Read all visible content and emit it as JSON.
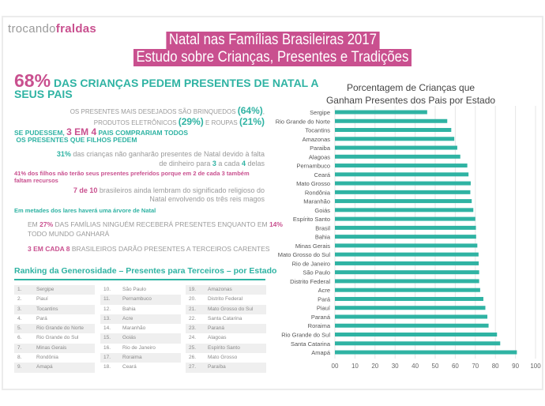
{
  "logo": {
    "part1": "trocando",
    "part2": "fraldas"
  },
  "title": {
    "line1": "Natal nas Famílias Brasileiras 2017",
    "line2": "Estudo sobre Crianças, Presentes e Tradições"
  },
  "facts": {
    "f1": {
      "big": "68%",
      "text": "DAS CRIANÇAS PEDEM PRESENTES DE NATAL A",
      "text2": "SEUS PAIS"
    },
    "f2": {
      "a": "OS PRESENTES MAIS DESEJADOS SÃO BRINQUEDOS ",
      "v1": "(64%)",
      "b": ",",
      "c": "PRODUTOS ELETRÔNICOS ",
      "v2": "(29%)",
      "d": " E ROUPAS ",
      "v3": "(21%)"
    },
    "f3": {
      "a": "SE PUDESSEM, ",
      "big": "3 EM 4",
      "b": " PAIS COMPRARIAM TODOS",
      "c": "OS PRESENTES QUE FILHOS PEDEM"
    },
    "f4": {
      "v": "31%",
      "a": " das crianças não ganharão presentes de Natal devido à falta",
      "b": "de dinheiro para ",
      "v2": "3",
      "c": " a cada ",
      "v3": "4",
      "d": " delas"
    },
    "f5": {
      "a": "41% dos filhos não terão seus presentes preferidos porque em ",
      "v": "2 de cada 3",
      "b": " também",
      "c": "faltam recursos"
    },
    "f6": {
      "v": "7 de 10",
      "a": " brasileiros ainda lembram do significado religioso do",
      "b": "Natal envolvendo os três reis magos"
    },
    "f7": {
      "text": "Em metades dos lares haverá uma árvore de Natal"
    },
    "f8": {
      "a": "EM ",
      "v1": "27%",
      "b": " DAS FAMÍLIAS NINGUÉM RECEBERÁ PRESENTES ENQUANTO EM ",
      "v2": "14%",
      "c": "TODO MUNDO GANHARÁ"
    },
    "f9": {
      "v": "3 EM CADA 8",
      "a": " BRASILEIROS DARÃO PRESENTES A TERCEIROS CARENTES"
    }
  },
  "ranking": {
    "title": "Ranking da Generosidade – Presentes para Terceiros – por Estado",
    "items": [
      [
        "1.",
        "Sergipe"
      ],
      [
        "2.",
        "Piauí"
      ],
      [
        "3.",
        "Tocantins"
      ],
      [
        "4.",
        "Pará"
      ],
      [
        "5.",
        "Rio Grande do Norte"
      ],
      [
        "6.",
        "Rio Grande do Sul"
      ],
      [
        "7.",
        "Minas Gerais"
      ],
      [
        "8.",
        "Rondônia"
      ],
      [
        "9.",
        "Amapá"
      ],
      [
        "10.",
        "São Paulo"
      ],
      [
        "11.",
        "Pernambuco"
      ],
      [
        "12.",
        "Bahia"
      ],
      [
        "13.",
        "Acre"
      ],
      [
        "14.",
        "Maranhão"
      ],
      [
        "15.",
        "Goiás"
      ],
      [
        "16.",
        "Rio de Janeiro"
      ],
      [
        "17.",
        "Roraima"
      ],
      [
        "18.",
        "Ceará"
      ],
      [
        "19.",
        "Amazonas"
      ],
      [
        "20.",
        "Distrito Federal"
      ],
      [
        "21.",
        "Mato Grosso do Sul"
      ],
      [
        "22.",
        "Santa Catarina"
      ],
      [
        "23.",
        "Paraná"
      ],
      [
        "24.",
        "Alagoas"
      ],
      [
        "25.",
        "Espírito Santo"
      ],
      [
        "26.",
        "Mato Grosso"
      ],
      [
        "27.",
        "Paraíba"
      ]
    ]
  },
  "colors": {
    "pink": "#c9508f",
    "teal": "#2fb3a3",
    "gray": "#9a9a9a"
  },
  "chart_data": {
    "type": "bar",
    "orientation": "horizontal",
    "title_line1": "Porcentagem de Crianças que",
    "title_line2": "Ganham Presentes dos Pais por Estado",
    "categories": [
      "Sergipe",
      "Rio Grande do Norte",
      "Tocantins",
      "Amazonas",
      "Paraiba",
      "Alagoas",
      "Pernambuco",
      "Ceará",
      "Mato Grosso",
      "Rondônia",
      "Maranhão",
      "Goiás",
      "Espírito Santo",
      "Brasil",
      "Bahia",
      "Minas Gerais",
      "Mato Grosso do Sul",
      "Rio de Janeiro",
      "São Paulo",
      "Distrito Federal",
      "Acre",
      "Pará",
      "Piauí",
      "Paraná",
      "Roraima",
      "Rio Grande do Sul",
      "Santa Catarina",
      "Amapá"
    ],
    "values": [
      46,
      56,
      58,
      59.5,
      61,
      62.5,
      66,
      66.6,
      67.7,
      67.5,
      68.2,
      69,
      70,
      70.3,
      70.4,
      71,
      71.6,
      71.7,
      71.9,
      71.9,
      72.4,
      74,
      75,
      76,
      76.6,
      80.8,
      82.4,
      90.7
    ],
    "xlim": [
      0,
      100
    ],
    "xticks": [
      "00",
      "10",
      "20",
      "30",
      "40",
      "50",
      "60",
      "70",
      "80",
      "90",
      "100"
    ],
    "grid": true,
    "bar_color": "#2fb3a3"
  }
}
